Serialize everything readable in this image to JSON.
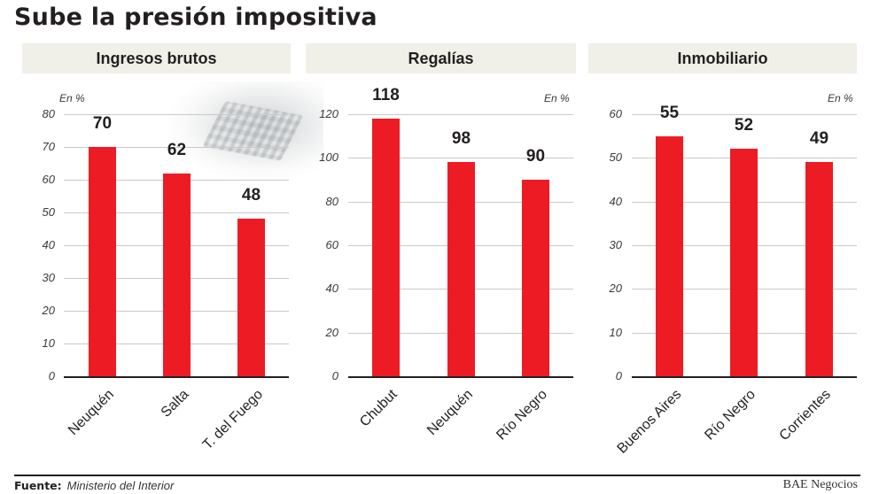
{
  "title": "Sube la presión impositiva",
  "footer": {
    "source_label": "Fuente:",
    "source_value": "Ministerio del Interior",
    "brand": "BAE Negocios"
  },
  "panels": [
    {
      "header": "Ingresos brutos",
      "unit": "En %",
      "yticks": [
        "0",
        "10",
        "20",
        "30",
        "40",
        "50",
        "60",
        "70",
        "80"
      ]
    },
    {
      "header": "Regalías",
      "unit": "En %",
      "yticks": [
        "0",
        "20",
        "40",
        "60",
        "80",
        "100",
        "120"
      ]
    },
    {
      "header": "Inmobiliario",
      "unit": "En %",
      "yticks": [
        "0",
        "10",
        "20",
        "30",
        "40",
        "50",
        "60"
      ]
    }
  ],
  "colors": {
    "bar": "#ed1c24",
    "header_bg": "#f0efe8",
    "text": "#231f20",
    "grid": "#c9c9c9"
  },
  "chart_data": [
    {
      "type": "bar",
      "title": "Ingresos brutos",
      "ylabel": "En %",
      "categories": [
        "Neuquén",
        "Salta",
        "T. del Fuego"
      ],
      "values": [
        70,
        62,
        48
      ],
      "labels": [
        "70",
        "62",
        "48"
      ],
      "ylim": [
        0,
        80
      ],
      "yticks": [
        0,
        10,
        20,
        30,
        40,
        50,
        60,
        70,
        80
      ],
      "grid": true
    },
    {
      "type": "bar",
      "title": "Regalías",
      "ylabel": "En %",
      "categories": [
        "Chubut",
        "Neuquén",
        "Río Negro"
      ],
      "values": [
        118,
        98,
        90
      ],
      "labels": [
        "118",
        "98",
        "90"
      ],
      "ylim": [
        0,
        120
      ],
      "yticks": [
        0,
        20,
        40,
        60,
        80,
        100,
        120
      ],
      "grid": true
    },
    {
      "type": "bar",
      "title": "Inmobiliario",
      "ylabel": "En %",
      "categories": [
        "Buenos Aires",
        "Río Negro",
        "Corrientes"
      ],
      "values": [
        55,
        52,
        49
      ],
      "labels": [
        "55",
        "52",
        "49"
      ],
      "ylim": [
        0,
        60
      ],
      "yticks": [
        0,
        10,
        20,
        30,
        40,
        50,
        60
      ],
      "grid": true
    }
  ]
}
